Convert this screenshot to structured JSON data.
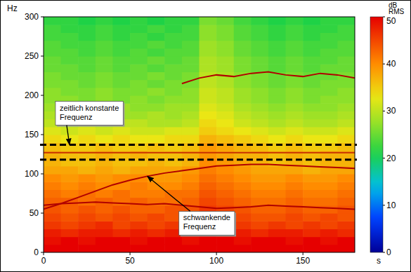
{
  "chart_data": {
    "type": "heatmap",
    "y_label": "Hz",
    "x_label": "s",
    "xlim": [
      0,
      180
    ],
    "ylim": [
      0,
      300
    ],
    "xticks": [
      0,
      50,
      100,
      150
    ],
    "yticks": [
      0,
      50,
      100,
      150,
      200,
      250,
      300
    ],
    "grid": false,
    "clim": [
      0,
      50
    ],
    "cticks": [
      0,
      10,
      20,
      30,
      40,
      50
    ],
    "clabel": [
      "dB",
      "RMS"
    ],
    "cells": {
      "x_edges": [
        0,
        10,
        20,
        30,
        40,
        50,
        60,
        70,
        80,
        90,
        100,
        110,
        120,
        130,
        140,
        150,
        160,
        170,
        180
      ],
      "y_edges": [
        0,
        10,
        20,
        30,
        40,
        50,
        60,
        70,
        80,
        90,
        100,
        110,
        120,
        130,
        140,
        150,
        160,
        170,
        180,
        190,
        200,
        210,
        220,
        230,
        240,
        250,
        260,
        270,
        280,
        290,
        300
      ],
      "values": [
        [
          50,
          50,
          50,
          50,
          50,
          50,
          50,
          50,
          50,
          50,
          50,
          50,
          50,
          50,
          50,
          50,
          50,
          50
        ],
        [
          49,
          50,
          49,
          50,
          50,
          49,
          50,
          50,
          49,
          50,
          50,
          49,
          50,
          50,
          49,
          50,
          49,
          50
        ],
        [
          48,
          47,
          48,
          48,
          47,
          48,
          47,
          48,
          48,
          49,
          48,
          48,
          47,
          48,
          48,
          47,
          48,
          47
        ],
        [
          46,
          45,
          46,
          47,
          45,
          46,
          45,
          46,
          47,
          48,
          47,
          46,
          45,
          46,
          45,
          46,
          45,
          46
        ],
        [
          45,
          44,
          45,
          44,
          45,
          44,
          45,
          44,
          45,
          47,
          46,
          45,
          44,
          44,
          45,
          44,
          45,
          44
        ],
        [
          44,
          43,
          44,
          43,
          44,
          43,
          43,
          44,
          44,
          46,
          45,
          44,
          43,
          43,
          44,
          43,
          43,
          44
        ],
        [
          43,
          43,
          42,
          43,
          42,
          43,
          42,
          42,
          43,
          45,
          44,
          43,
          42,
          42,
          43,
          42,
          42,
          43
        ],
        [
          42,
          41,
          42,
          41,
          42,
          41,
          41,
          42,
          42,
          44,
          43,
          42,
          41,
          41,
          42,
          41,
          41,
          42
        ],
        [
          41,
          40,
          41,
          40,
          40,
          41,
          40,
          40,
          41,
          43,
          42,
          41,
          40,
          40,
          41,
          40,
          40,
          41
        ],
        [
          40,
          39,
          40,
          39,
          40,
          40,
          39,
          39,
          40,
          42,
          41,
          40,
          39,
          39,
          40,
          39,
          39,
          40
        ],
        [
          38,
          38,
          37,
          38,
          37,
          38,
          38,
          38,
          39,
          41,
          40,
          39,
          38,
          38,
          38,
          37,
          38,
          38
        ],
        [
          37,
          36,
          36,
          37,
          36,
          36,
          37,
          36,
          37,
          40,
          39,
          38,
          37,
          36,
          37,
          36,
          37,
          37
        ],
        [
          37,
          36,
          36,
          37,
          36,
          37,
          36,
          36,
          37,
          39,
          38,
          37,
          37,
          36,
          37,
          36,
          37,
          37
        ],
        [
          36,
          35,
          35,
          36,
          35,
          35,
          36,
          35,
          36,
          39,
          38,
          37,
          36,
          35,
          36,
          35,
          35,
          36
        ],
        [
          34,
          33,
          34,
          33,
          34,
          33,
          33,
          34,
          34,
          37,
          36,
          35,
          34,
          33,
          34,
          33,
          33,
          34
        ],
        [
          32,
          31,
          32,
          31,
          32,
          31,
          31,
          32,
          32,
          35,
          34,
          33,
          32,
          31,
          32,
          31,
          31,
          32
        ],
        [
          30,
          29,
          30,
          29,
          30,
          30,
          29,
          29,
          30,
          34,
          33,
          31,
          30,
          29,
          30,
          29,
          29,
          30
        ],
        [
          29,
          28,
          28,
          29,
          28,
          28,
          29,
          28,
          29,
          33,
          32,
          30,
          29,
          28,
          29,
          28,
          28,
          29
        ],
        [
          28,
          27,
          28,
          27,
          28,
          27,
          27,
          28,
          28,
          32,
          31,
          29,
          28,
          27,
          28,
          27,
          27,
          28
        ],
        [
          27,
          27,
          26,
          27,
          26,
          27,
          26,
          27,
          27,
          31,
          30,
          28,
          27,
          26,
          27,
          26,
          27,
          27
        ],
        [
          27,
          26,
          26,
          27,
          26,
          26,
          27,
          26,
          27,
          31,
          30,
          28,
          27,
          26,
          27,
          26,
          26,
          27
        ],
        [
          26,
          26,
          25,
          26,
          25,
          26,
          25,
          26,
          26,
          30,
          29,
          27,
          26,
          25,
          26,
          25,
          26,
          26
        ],
        [
          26,
          25,
          25,
          26,
          25,
          25,
          26,
          25,
          26,
          30,
          29,
          27,
          26,
          25,
          26,
          25,
          25,
          26
        ],
        [
          25,
          25,
          24,
          25,
          24,
          25,
          24,
          25,
          25,
          29,
          28,
          26,
          25,
          24,
          25,
          24,
          25,
          25
        ],
        [
          25,
          24,
          24,
          25,
          24,
          24,
          25,
          24,
          25,
          29,
          28,
          26,
          25,
          24,
          25,
          24,
          24,
          25
        ],
        [
          24,
          24,
          23,
          24,
          23,
          24,
          23,
          24,
          24,
          28,
          27,
          25,
          24,
          23,
          24,
          23,
          24,
          24
        ],
        [
          24,
          23,
          23,
          24,
          23,
          23,
          24,
          23,
          24,
          28,
          27,
          25,
          24,
          23,
          24,
          23,
          23,
          24
        ],
        [
          23,
          23,
          22,
          23,
          22,
          23,
          22,
          23,
          23,
          27,
          26,
          24,
          23,
          22,
          23,
          22,
          23,
          23
        ],
        [
          23,
          22,
          22,
          23,
          22,
          22,
          23,
          22,
          23,
          27,
          26,
          24,
          23,
          22,
          23,
          22,
          22,
          23
        ],
        [
          22,
          22,
          21,
          22,
          21,
          22,
          21,
          22,
          22,
          26,
          25,
          23,
          22,
          21,
          22,
          21,
          22,
          22
        ]
      ]
    },
    "series": [
      {
        "color": "#b00000",
        "line_style": "solid",
        "x": [
          0,
          10,
          20,
          30,
          40,
          50,
          60,
          70,
          80,
          90,
          100,
          110,
          120,
          130,
          140,
          150,
          160,
          170,
          180
        ],
        "values": [
          55,
          62,
          70,
          78,
          86,
          92,
          97,
          101,
          104,
          107,
          110,
          111,
          112,
          112,
          111,
          110,
          109,
          108,
          107
        ]
      },
      {
        "color": "#b00000",
        "line_style": "solid",
        "x": [
          0,
          10,
          20,
          30,
          40,
          50,
          60,
          70,
          80,
          90,
          100,
          110,
          120,
          130,
          140,
          150,
          160,
          170,
          180
        ],
        "values": [
          60,
          62,
          63,
          64,
          63,
          62,
          61,
          62,
          60,
          58,
          56,
          57,
          58,
          60,
          59,
          58,
          57,
          56,
          55
        ]
      },
      {
        "color": "#b00000",
        "line_style": "solid",
        "x": [
          80,
          90,
          100,
          110,
          120,
          130,
          140,
          150,
          160,
          170,
          180
        ],
        "values": [
          215,
          222,
          226,
          224,
          228,
          230,
          226,
          224,
          228,
          226,
          222
        ]
      },
      {
        "color": "#c83000",
        "line_style": "solid",
        "x": [
          0,
          180
        ],
        "values": [
          127,
          127
        ]
      }
    ],
    "band": [
      118,
      137
    ],
    "annotations": [
      {
        "lines": [
          "zeitlich konstante",
          "Frequenz"
        ],
        "x": 15,
        "y": 137
      },
      {
        "lines": [
          "schwankende",
          "Frequenz"
        ],
        "x": 60,
        "y": 97
      }
    ]
  }
}
